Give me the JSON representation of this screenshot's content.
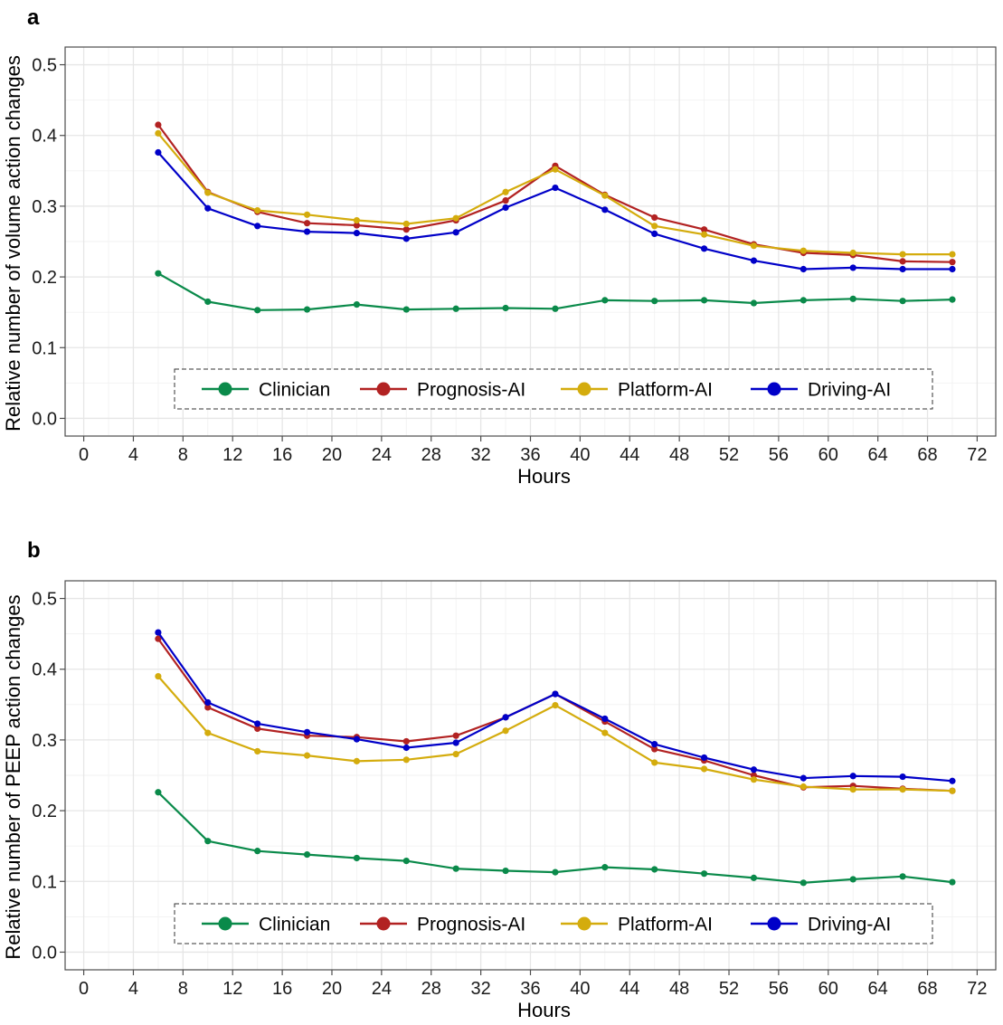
{
  "colors": {
    "Clinician": "#0a8a4a",
    "Prognosis-AI": "#b22222",
    "Platform-AI": "#d4ac0d",
    "Driving-AI": "#0000c8"
  },
  "chart_data": [
    {
      "type": "line",
      "panel": "a",
      "title": "",
      "xlabel": "Hours",
      "ylabel": "Relative number of volume action changes",
      "xlim": [
        -1.5,
        73.5
      ],
      "ylim": [
        -0.025,
        0.525
      ],
      "xticks": [
        0,
        4,
        8,
        12,
        16,
        20,
        24,
        28,
        32,
        36,
        40,
        44,
        48,
        52,
        56,
        60,
        64,
        68,
        72
      ],
      "xtick_labels": [
        "0",
        "4",
        "8",
        "12",
        "16",
        "20",
        "24",
        "28",
        "32",
        "36",
        "40",
        "44",
        "48",
        "52",
        "56",
        "60",
        "64",
        "68",
        "72"
      ],
      "yticks": [
        0.0,
        0.1,
        0.2,
        0.3,
        0.4,
        0.5
      ],
      "ytick_labels": [
        "0.0",
        "0.1",
        "0.2",
        "0.3",
        "0.4",
        "0.5"
      ],
      "grid": true,
      "legend_position": "bottom-inside",
      "x": [
        6,
        10,
        14,
        18,
        22,
        26,
        30,
        34,
        38,
        42,
        46,
        50,
        54,
        58,
        62,
        66,
        70
      ],
      "series": [
        {
          "name": "Clinician",
          "values": [
            0.205,
            0.165,
            0.153,
            0.154,
            0.161,
            0.154,
            0.155,
            0.156,
            0.155,
            0.167,
            0.166,
            0.167,
            0.163,
            0.167,
            0.169,
            0.166,
            0.168
          ]
        },
        {
          "name": "Prognosis-AI",
          "values": [
            0.415,
            0.32,
            0.292,
            0.276,
            0.273,
            0.267,
            0.28,
            0.308,
            0.357,
            0.316,
            0.284,
            0.267,
            0.246,
            0.234,
            0.231,
            0.222,
            0.221
          ]
        },
        {
          "name": "Platform-AI",
          "values": [
            0.403,
            0.319,
            0.294,
            0.288,
            0.28,
            0.275,
            0.283,
            0.32,
            0.352,
            0.315,
            0.272,
            0.26,
            0.244,
            0.237,
            0.234,
            0.232,
            0.232
          ]
        },
        {
          "name": "Driving-AI",
          "values": [
            0.376,
            0.297,
            0.272,
            0.264,
            0.262,
            0.254,
            0.263,
            0.298,
            0.326,
            0.295,
            0.261,
            0.24,
            0.223,
            0.211,
            0.213,
            0.211,
            0.211
          ]
        }
      ]
    },
    {
      "type": "line",
      "panel": "b",
      "title": "",
      "xlabel": "Hours",
      "ylabel": "Relative number of PEEP action changes",
      "xlim": [
        -1.5,
        73.5
      ],
      "ylim": [
        -0.025,
        0.525
      ],
      "xticks": [
        0,
        4,
        8,
        12,
        16,
        20,
        24,
        28,
        32,
        36,
        40,
        44,
        48,
        52,
        56,
        60,
        64,
        68,
        72
      ],
      "xtick_labels": [
        "0",
        "4",
        "8",
        "12",
        "16",
        "20",
        "24",
        "28",
        "32",
        "36",
        "40",
        "44",
        "48",
        "52",
        "56",
        "60",
        "64",
        "68",
        "72"
      ],
      "yticks": [
        0.0,
        0.1,
        0.2,
        0.3,
        0.4,
        0.5
      ],
      "ytick_labels": [
        "0.0",
        "0.1",
        "0.2",
        "0.3",
        "0.4",
        "0.5"
      ],
      "grid": true,
      "legend_position": "bottom-inside",
      "x": [
        6,
        10,
        14,
        18,
        22,
        26,
        30,
        34,
        38,
        42,
        46,
        50,
        54,
        58,
        62,
        66,
        70
      ],
      "series": [
        {
          "name": "Clinician",
          "values": [
            0.226,
            0.157,
            0.143,
            0.138,
            0.133,
            0.129,
            0.118,
            0.115,
            0.113,
            0.12,
            0.117,
            0.111,
            0.105,
            0.098,
            0.103,
            0.107,
            0.099
          ]
        },
        {
          "name": "Prognosis-AI",
          "values": [
            0.443,
            0.346,
            0.316,
            0.306,
            0.304,
            0.298,
            0.306,
            0.332,
            0.365,
            0.326,
            0.287,
            0.271,
            0.25,
            0.233,
            0.235,
            0.231,
            0.228
          ]
        },
        {
          "name": "Platform-AI",
          "values": [
            0.39,
            0.31,
            0.284,
            0.278,
            0.27,
            0.272,
            0.28,
            0.313,
            0.349,
            0.31,
            0.268,
            0.259,
            0.244,
            0.234,
            0.23,
            0.23,
            0.228
          ]
        },
        {
          "name": "Driving-AI",
          "values": [
            0.452,
            0.353,
            0.323,
            0.311,
            0.301,
            0.289,
            0.296,
            0.332,
            0.365,
            0.33,
            0.294,
            0.275,
            0.258,
            0.246,
            0.249,
            0.248,
            0.242
          ]
        }
      ]
    }
  ]
}
